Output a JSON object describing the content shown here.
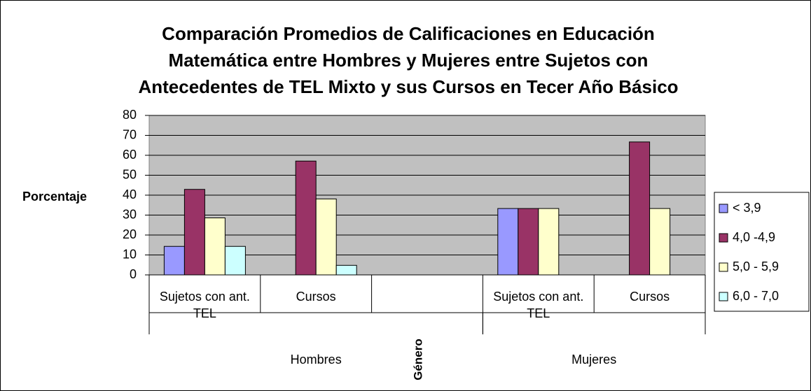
{
  "chart_data": {
    "type": "bar",
    "title": [
      "Comparación Promedios de Calificaciones en Educación",
      "Matemática entre Hombres y Mujeres entre Sujetos con",
      "Antecedentes de TEL Mixto y sus Cursos en Tecer Año Básico"
    ],
    "y_label": "Porcentaje",
    "x_label": "Género",
    "categories": [
      "Sujetos con ant. TEL",
      "Cursos",
      null,
      "Sujetos con ant. TEL",
      "Cursos"
    ],
    "groups": [
      {
        "name": "Hombres",
        "span": 3
      },
      {
        "name": "Mujeres",
        "span": 2
      }
    ],
    "series": [
      {
        "name": "< 3,9",
        "color": "#9999ff",
        "values": [
          14.3,
          null,
          null,
          33.3,
          null
        ]
      },
      {
        "name": "4,0 -4,9",
        "color": "#993366",
        "values": [
          42.9,
          57.1,
          null,
          33.3,
          66.7
        ]
      },
      {
        "name": "5,0 - 5,9",
        "color": "#ffffcc",
        "values": [
          28.6,
          38.1,
          null,
          33.3,
          33.3
        ]
      },
      {
        "name": "6,0 - 7,0",
        "color": "#ccffff",
        "values": [
          14.3,
          4.8,
          null,
          null,
          null
        ]
      }
    ],
    "ylim": [
      0,
      80
    ],
    "yticks": [
      0,
      10,
      20,
      30,
      40,
      50,
      60,
      70,
      80
    ],
    "grid": true,
    "legend": "right"
  }
}
